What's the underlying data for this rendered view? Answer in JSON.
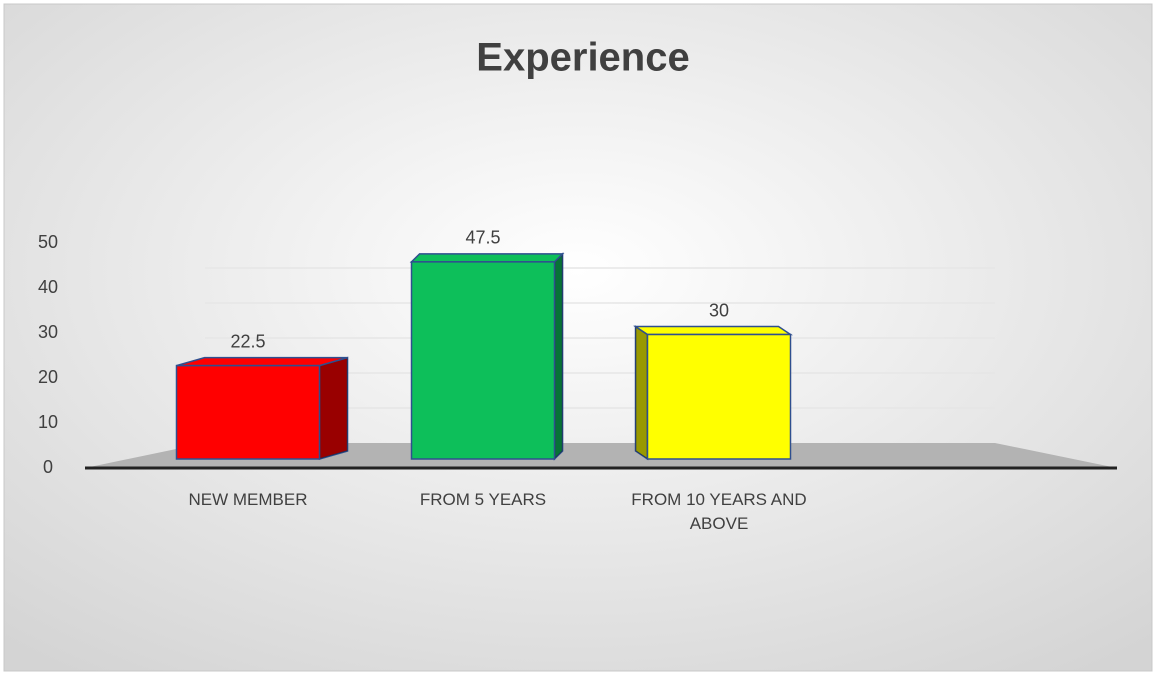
{
  "chart_data": {
    "type": "bar",
    "title": "Experience",
    "categories": [
      "NEW MEMBER",
      "FROM 5 YEARS",
      "FROM 10 YEARS AND ABOVE"
    ],
    "values": [
      22.5,
      47.5,
      30
    ],
    "colors": [
      "#ff0000",
      "#0dbf5a",
      "#ffff00"
    ],
    "ylim": [
      0,
      50
    ],
    "yticks": [
      0,
      10,
      20,
      30,
      40,
      50
    ],
    "grid": true
  }
}
